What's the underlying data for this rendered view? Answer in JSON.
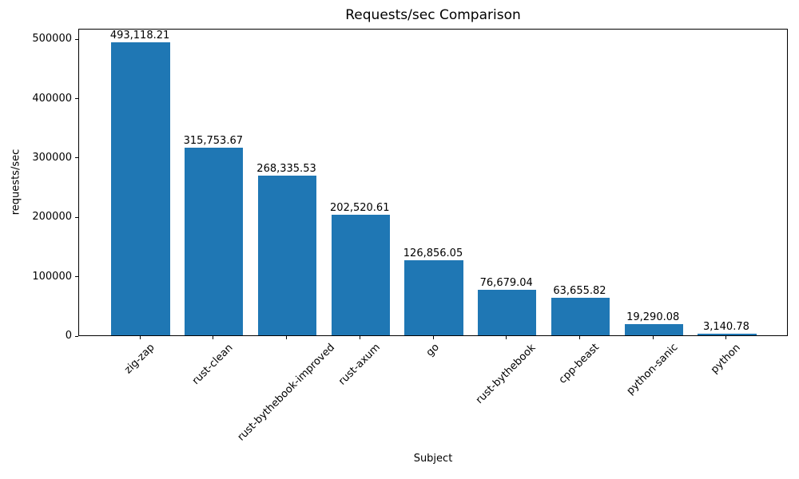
{
  "chart_data": {
    "type": "bar",
    "title": "Requests/sec Comparison",
    "xlabel": "Subject",
    "ylabel": "requests/sec",
    "categories": [
      "zig-zap",
      "rust-clean",
      "rust-bythebook-improved",
      "rust-axum",
      "go",
      "rust-bythebook",
      "cpp-beast",
      "python-sanic",
      "python"
    ],
    "values": [
      493118.21,
      315753.67,
      268335.53,
      202520.61,
      126856.05,
      76679.04,
      63655.82,
      19290.08,
      3140.78
    ],
    "value_labels": [
      "493,118.21",
      "315,753.67",
      "268,335.53",
      "202,520.61",
      "126,856.05",
      "76,679.04",
      "63,655.82",
      "19,290.08",
      "3,140.78"
    ],
    "ytick_values": [
      0,
      100000,
      200000,
      300000,
      400000,
      500000
    ],
    "ytick_labels": [
      "0",
      "100000",
      "200000",
      "300000",
      "400000",
      "500000"
    ],
    "ylim": [
      0,
      517774
    ],
    "xtick_rotation_deg": 45,
    "bar_color": "#1f77b4",
    "text_color": "#000000",
    "grid": false,
    "legend": null
  }
}
